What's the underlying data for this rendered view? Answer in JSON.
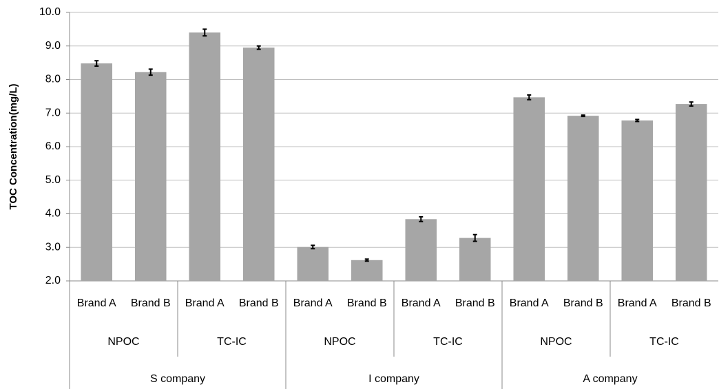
{
  "chart_data": {
    "type": "bar",
    "y_label": "TOC Concentration(mg/L)",
    "categories": [
      "Brand A",
      "Brand B",
      "Brand A",
      "Brand B",
      "Brand A",
      "Brand B",
      "Brand A",
      "Brand B",
      "Brand A",
      "Brand B",
      "Brand A",
      "Brand B"
    ],
    "subgroups": [
      "NPOC",
      "TC-IC",
      "NPOC",
      "TC-IC",
      "NPOC",
      "TC-IC"
    ],
    "groups": [
      "S company",
      "I company",
      "A company"
    ],
    "values": [
      8.48,
      8.22,
      9.4,
      8.95,
      3.01,
      2.62,
      3.84,
      3.28,
      7.47,
      6.92,
      6.78,
      7.27
    ],
    "errors": [
      0.08,
      0.09,
      0.1,
      0.05,
      0.05,
      0.03,
      0.07,
      0.1,
      0.07,
      0.02,
      0.03,
      0.06
    ],
    "color": "#a6a6a6",
    "ylim": [
      2,
      10
    ],
    "yticks": [
      {
        "value": 2,
        "label": "2.0"
      },
      {
        "value": 3,
        "label": "3.0"
      },
      {
        "value": 4,
        "label": "4.0"
      },
      {
        "value": 5,
        "label": "5.0"
      },
      {
        "value": 6,
        "label": "6.0"
      },
      {
        "value": 7,
        "label": "7.0"
      },
      {
        "value": 8,
        "label": "8.0"
      },
      {
        "value": 9,
        "label": "9.0"
      },
      {
        "value": 10,
        "label": "10.0"
      }
    ],
    "grid": true
  }
}
